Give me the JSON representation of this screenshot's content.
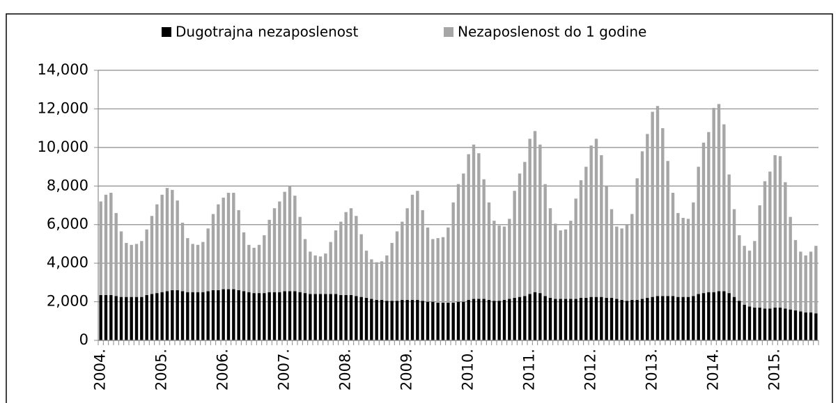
{
  "chart_data": {
    "type": "stacked_bar",
    "categories": [
      "2004.",
      null,
      null,
      null,
      null,
      null,
      null,
      null,
      null,
      null,
      null,
      null,
      "2005.",
      null,
      null,
      null,
      null,
      null,
      null,
      null,
      null,
      null,
      null,
      null,
      "2006.",
      null,
      null,
      null,
      null,
      null,
      null,
      null,
      null,
      null,
      null,
      null,
      "2007.",
      null,
      null,
      null,
      null,
      null,
      null,
      null,
      null,
      null,
      null,
      null,
      "2008.",
      null,
      null,
      null,
      null,
      null,
      null,
      null,
      null,
      null,
      null,
      null,
      "2009.",
      null,
      null,
      null,
      null,
      null,
      null,
      null,
      null,
      null,
      null,
      null,
      "2010.",
      null,
      null,
      null,
      null,
      null,
      null,
      null,
      null,
      null,
      null,
      null,
      "2011.",
      null,
      null,
      null,
      null,
      null,
      null,
      null,
      null,
      null,
      null,
      null,
      "2012.",
      null,
      null,
      null,
      null,
      null,
      null,
      null,
      null,
      null,
      null,
      null,
      "2013.",
      null,
      null,
      null,
      null,
      null,
      null,
      null,
      null,
      null,
      null,
      null,
      "2014.",
      null,
      null,
      null,
      null,
      null,
      null,
      null,
      null,
      null,
      null,
      null,
      "2015.",
      null,
      null,
      null,
      null,
      null,
      null,
      null,
      null
    ],
    "series": [
      {
        "name": "Dugotrajna nezaposlenost",
        "color": "#000000",
        "values": [
          2350,
          2350,
          2350,
          2300,
          2250,
          2250,
          2250,
          2250,
          2250,
          2350,
          2400,
          2450,
          2500,
          2550,
          2600,
          2600,
          2550,
          2500,
          2500,
          2500,
          2500,
          2550,
          2600,
          2600,
          2650,
          2650,
          2650,
          2600,
          2550,
          2500,
          2450,
          2450,
          2450,
          2500,
          2500,
          2500,
          2550,
          2550,
          2550,
          2500,
          2450,
          2400,
          2400,
          2400,
          2400,
          2400,
          2400,
          2350,
          2350,
          2350,
          2300,
          2250,
          2200,
          2150,
          2100,
          2100,
          2050,
          2050,
          2050,
          2100,
          2100,
          2100,
          2100,
          2050,
          2000,
          2000,
          1950,
          1950,
          1950,
          1950,
          2000,
          2000,
          2100,
          2150,
          2150,
          2150,
          2100,
          2050,
          2050,
          2100,
          2150,
          2200,
          2250,
          2300,
          2400,
          2500,
          2450,
          2300,
          2200,
          2150,
          2150,
          2150,
          2150,
          2150,
          2200,
          2200,
          2250,
          2250,
          2250,
          2200,
          2200,
          2150,
          2100,
          2050,
          2100,
          2100,
          2150,
          2200,
          2250,
          2300,
          2300,
          2300,
          2300,
          2250,
          2250,
          2250,
          2300,
          2400,
          2450,
          2500,
          2500,
          2550,
          2550,
          2450,
          2250,
          2050,
          1850,
          1750,
          1700,
          1700,
          1650,
          1650,
          1700,
          1700,
          1650,
          1600,
          1550,
          1500,
          1450,
          1450,
          1400
        ]
      },
      {
        "name": "Nezaposlenost do 1 godine",
        "color": "#a6a6a6",
        "values": [
          4850,
          5200,
          5300,
          4300,
          3400,
          2800,
          2700,
          2750,
          2900,
          3400,
          4050,
          4600,
          5050,
          5350,
          5200,
          4650,
          3550,
          2800,
          2500,
          2450,
          2600,
          3250,
          3950,
          4450,
          4750,
          5000,
          5000,
          4150,
          3050,
          2450,
          2350,
          2500,
          3000,
          3750,
          4350,
          4700,
          5150,
          5450,
          4950,
          3900,
          2800,
          2200,
          2000,
          1950,
          2100,
          2700,
          3300,
          3800,
          4300,
          4500,
          4150,
          3250,
          2450,
          2050,
          1950,
          2000,
          2350,
          3000,
          3600,
          4050,
          4750,
          5450,
          5650,
          4700,
          3850,
          3250,
          3350,
          3400,
          3900,
          5200,
          6100,
          6650,
          7550,
          8000,
          7550,
          6200,
          5050,
          4150,
          3900,
          3800,
          4150,
          5550,
          6400,
          6950,
          8050,
          8350,
          7700,
          5800,
          4650,
          3900,
          3550,
          3600,
          4050,
          5200,
          6100,
          6800,
          7850,
          8200,
          7350,
          5800,
          4600,
          3750,
          3700,
          3950,
          4450,
          6300,
          7650,
          8500,
          9600,
          9850,
          8700,
          7000,
          5350,
          4350,
          4100,
          4050,
          4850,
          6600,
          7800,
          8300,
          9550,
          9700,
          8650,
          6150,
          4550,
          3400,
          3050,
          2900,
          3450,
          5300,
          6600,
          7100,
          7900,
          7850,
          6550,
          4800,
          3650,
          3100,
          2950,
          3150,
          3500
        ]
      }
    ],
    "ylim": [
      0,
      14000
    ],
    "yticks": [
      0,
      {
        "value": 2000,
        "label": "2,000"
      },
      {
        "value": 4000,
        "label": "4,000"
      },
      {
        "value": 6000,
        "label": "6,000"
      },
      {
        "value": 8000,
        "label": "8,000"
      },
      {
        "value": 10000,
        "label": "10,000"
      },
      {
        "value": 12000,
        "label": "12,000"
      },
      {
        "value": 14000,
        "label": "14,000"
      }
    ],
    "grid": true,
    "legend": "top"
  }
}
